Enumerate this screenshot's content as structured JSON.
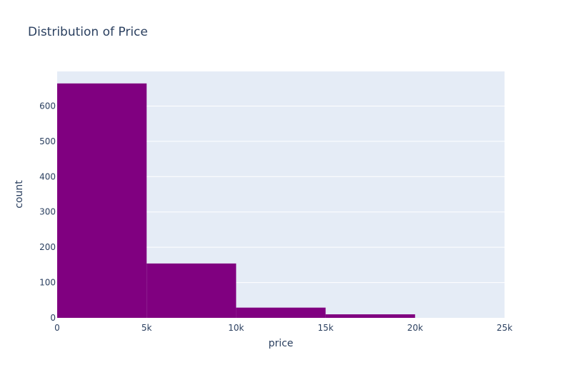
{
  "chart_data": {
    "type": "bar",
    "title": "Distribution of Price",
    "xlabel": "price",
    "ylabel": "count",
    "bins": [
      {
        "x0": 0,
        "x1": 5000,
        "count": 664
      },
      {
        "x0": 5000,
        "x1": 10000,
        "count": 154
      },
      {
        "x0": 10000,
        "x1": 15000,
        "count": 29
      },
      {
        "x0": 15000,
        "x1": 20000,
        "count": 10
      }
    ],
    "xlim": [
      0,
      25000
    ],
    "ylim": [
      0,
      698
    ],
    "x_ticks": [
      0,
      5000,
      10000,
      15000,
      20000,
      25000
    ],
    "x_tick_labels": [
      "0",
      "5k",
      "10k",
      "15k",
      "20k",
      "25k"
    ],
    "y_ticks": [
      0,
      100,
      200,
      300,
      400,
      500,
      600
    ],
    "y_tick_labels": [
      "0",
      "100",
      "200",
      "300",
      "400",
      "500",
      "600"
    ],
    "grid": true,
    "colors": {
      "bar": "#800080",
      "plot_background": "#e5ecf6",
      "grid": "#ffffff",
      "text": "#2a3f5f"
    }
  }
}
